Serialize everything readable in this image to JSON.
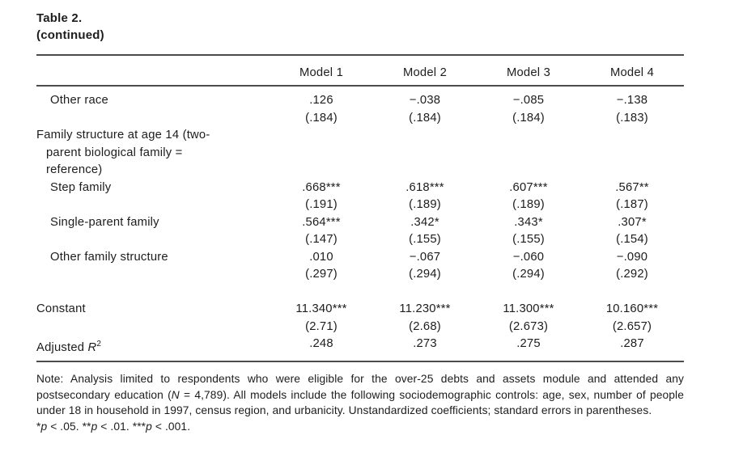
{
  "title": "Table 2.",
  "subtitle": "(continued)",
  "table": {
    "columns": [
      "Model 1",
      "Model 2",
      "Model 3",
      "Model 4"
    ],
    "rows": [
      {
        "type": "data",
        "indent": 1,
        "label": "Other race",
        "values": [
          ".126",
          "−.038",
          "−.085",
          "−.138"
        ],
        "se": [
          "(.184)",
          "(.184)",
          "(.184)",
          "(.183)"
        ]
      },
      {
        "type": "section",
        "lines": [
          "Family structure at age 14 (two-",
          "parent biological family =",
          "reference)"
        ]
      },
      {
        "type": "data",
        "indent": 1,
        "label": "Step family",
        "values": [
          ".668***",
          ".618***",
          ".607***",
          ".567**"
        ],
        "se": [
          "(.191)",
          "(.189)",
          "(.189)",
          "(.187)"
        ]
      },
      {
        "type": "data",
        "indent": 1,
        "label": "Single-parent family",
        "values": [
          ".564***",
          ".342*",
          ".343*",
          ".307*"
        ],
        "se": [
          "(.147)",
          "(.155)",
          "(.155)",
          "(.154)"
        ]
      },
      {
        "type": "data",
        "indent": 1,
        "label": "Other family structure",
        "values": [
          ".010",
          "−.067",
          "−.060",
          "−.090"
        ],
        "se": [
          "(.297)",
          "(.294)",
          "(.294)",
          "(.292)"
        ]
      },
      {
        "type": "spacer"
      },
      {
        "type": "data",
        "indent": 0,
        "label": "Constant",
        "values": [
          "11.340***",
          "11.230***",
          "11.300***",
          "10.160***"
        ],
        "se": [
          "(2.71)",
          "(2.68)",
          "(2.673)",
          "(2.657)"
        ]
      },
      {
        "type": "data",
        "indent": 0,
        "label": "Adjusted [i]R[/i][sup]2[/sup]",
        "values": [
          ".248",
          ".273",
          ".275",
          ".287"
        ]
      }
    ]
  },
  "notes": {
    "note": "Note: Analysis limited to respondents who were eligible for the over-25 debts and assets module and attended any postsecondary education ([i]N[/i] = 4,789). All models include the following sociodemographic controls: age, sex, number of people under 18 in household in 1997, census region, and urbanicity. Unstandardized coefficients; standard errors in parentheses.",
    "significance": "*[i]p[/i] < .05. **[i]p[/i] < .01. ***[i]p[/i] < .001."
  },
  "colors": {
    "text": "#1d1d1d",
    "rule": "#4c4c4c",
    "background": "#ffffff"
  }
}
